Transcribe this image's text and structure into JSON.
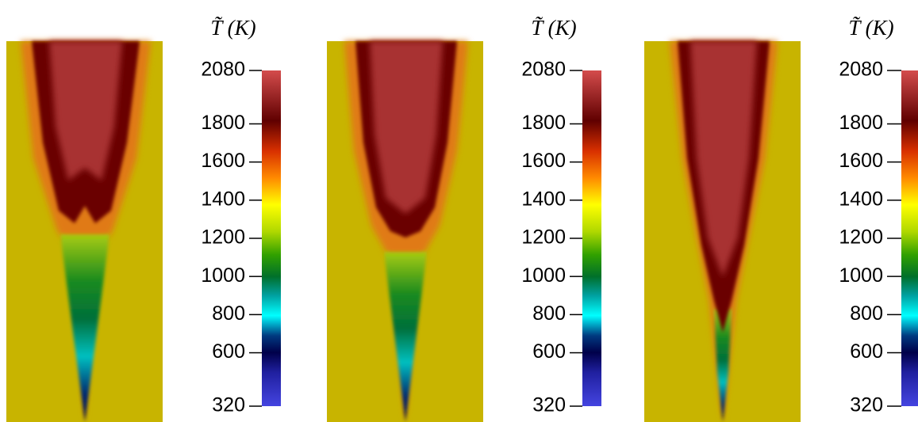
{
  "chart_data": [
    {
      "type": "field",
      "title": "T̃ (K)",
      "clim": [
        320,
        2080
      ],
      "cticks": [
        320,
        600,
        800,
        1000,
        1200,
        1400,
        1600,
        1800,
        2080
      ]
    },
    {
      "type": "field",
      "title": "T̃ (K)",
      "clim": [
        320,
        2080
      ],
      "cticks": [
        320,
        600,
        800,
        1000,
        1200,
        1400,
        1600,
        1800,
        2080
      ]
    },
    {
      "type": "field",
      "title": "T̃ (K)",
      "clim": [
        320,
        2080
      ],
      "cticks": [
        320,
        600,
        800,
        1000,
        1200,
        1400,
        1600,
        1800,
        2080
      ]
    }
  ]
}
